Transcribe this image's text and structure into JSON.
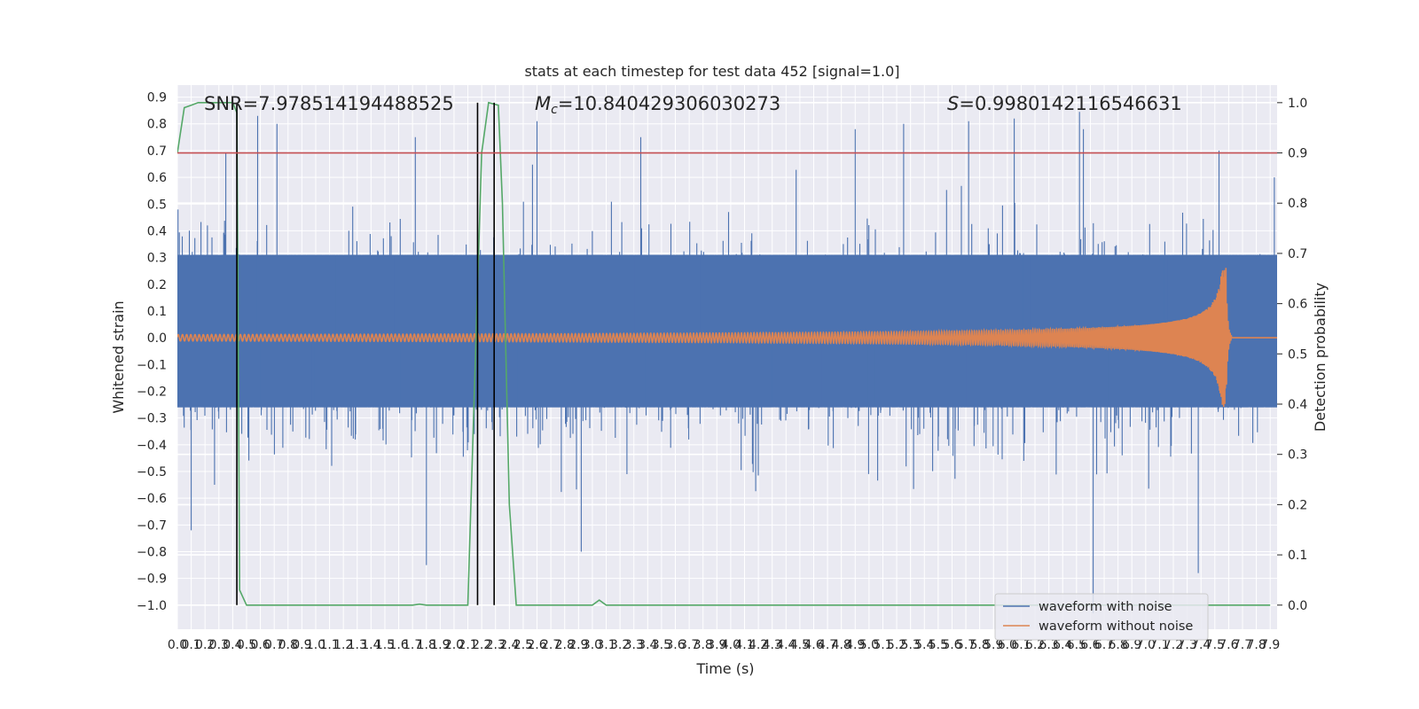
{
  "chart_data": {
    "type": "line",
    "title": "stats at each timestep for test data 452 [signal=1.0]",
    "xlabel": "Time (s)",
    "ylabel_left": "Whitened strain",
    "ylabel_right": "Detection probability",
    "xlim": [
      0.0,
      7.95
    ],
    "ylim_left": [
      -1.09,
      0.945
    ],
    "ylim_right": [
      -0.048,
      1.035
    ],
    "x_ticks": [
      "0.0",
      "0.1",
      "0.2",
      "0.3",
      "0.4",
      "0.5",
      "0.6",
      "0.7",
      "0.8",
      "0.9",
      "1.0",
      "1.1",
      "1.2",
      "1.3",
      "1.4",
      "1.5",
      "1.6",
      "1.7",
      "1.8",
      "1.9",
      "2.0",
      "2.1",
      "2.2",
      "2.3",
      "2.4",
      "2.5",
      "2.6",
      "2.7",
      "2.8",
      "2.9",
      "3.0",
      "3.1",
      "3.2",
      "3.3",
      "3.4",
      "3.5",
      "3.6",
      "3.7",
      "3.8",
      "3.9",
      "4.0",
      "4.1",
      "4.2",
      "4.3",
      "4.4",
      "4.5",
      "4.6",
      "4.7",
      "4.8",
      "4.9",
      "5.0",
      "5.1",
      "5.2",
      "5.3",
      "5.4",
      "5.5",
      "5.6",
      "5.7",
      "5.8",
      "5.9",
      "6.0",
      "6.1",
      "6.2",
      "6.3",
      "6.4",
      "6.5",
      "6.6",
      "6.7",
      "6.8",
      "6.9",
      "7.0",
      "7.1",
      "7.2",
      "7.3",
      "7.4",
      "7.5",
      "7.6",
      "7.7",
      "7.8",
      "7.9"
    ],
    "y_ticks_left": [
      -1.0,
      -0.9,
      -0.8,
      -0.7,
      -0.6,
      -0.5,
      -0.4,
      -0.3,
      -0.2,
      -0.1,
      0.0,
      0.1,
      0.2,
      0.3,
      0.4,
      0.5,
      0.6,
      0.7,
      0.8,
      0.9
    ],
    "y_tick_labels_left": [
      "−1.0",
      "−0.9",
      "−0.8",
      "−0.7",
      "−0.6",
      "−0.5",
      "−0.4",
      "−0.3",
      "−0.2",
      "−0.1",
      "0.0",
      "0.1",
      "0.2",
      "0.3",
      "0.4",
      "0.5",
      "0.6",
      "0.7",
      "0.8",
      "0.9"
    ],
    "y_ticks_right": [
      0.0,
      0.1,
      0.2,
      0.3,
      0.4,
      0.5,
      0.6,
      0.7,
      0.8,
      0.9,
      1.0
    ],
    "y_tick_labels_right": [
      "0.0",
      "0.1",
      "0.2",
      "0.3",
      "0.4",
      "0.5",
      "0.6",
      "0.7",
      "0.8",
      "0.9",
      "1.0"
    ],
    "annotations": {
      "snr": "SNR=7.978514194488525",
      "mc_symbol": "M",
      "mc_sub": "c",
      "mc_value": "=10.840429306030273",
      "s_symbol": "S",
      "s_value": "=0.9980142116546631"
    },
    "threshold_line": {
      "axis": "right",
      "y": 0.9,
      "color": "#c44e52"
    },
    "vertical_lines": [
      0.43,
      2.17,
      2.29
    ],
    "series": [
      {
        "name": "waveform with noise",
        "axis": "left",
        "color": "#4c72b0",
        "kind": "noise",
        "typical_range": [
          -0.45,
          0.5
        ],
        "extreme_range": [
          -1.05,
          0.85
        ]
      },
      {
        "name": "waveform without noise",
        "axis": "left",
        "color": "#dd8452",
        "kind": "chirp",
        "merger_time": 7.58,
        "peak_amplitude": 0.26,
        "start_amplitude": 0.012
      },
      {
        "name": "detection probability",
        "axis": "right",
        "color": "#55a868",
        "x": [
          0.0,
          0.05,
          0.1,
          0.15,
          0.2,
          0.3,
          0.35,
          0.4,
          0.43,
          0.45,
          0.5,
          1.0,
          1.5,
          1.7,
          1.75,
          1.8,
          2.1,
          2.2,
          2.25,
          2.32,
          2.35,
          2.4,
          2.45,
          2.5,
          2.6,
          3.0,
          3.05,
          3.1,
          3.15,
          3.3,
          4.0,
          5.0,
          6.0,
          7.0,
          7.5,
          7.8,
          7.9
        ],
        "values": [
          0.9,
          0.99,
          0.995,
          1.0,
          1.0,
          1.0,
          1.0,
          1.0,
          0.98,
          0.03,
          0.0,
          0.0,
          0.0,
          0.0,
          0.002,
          0.0,
          0.0,
          0.9,
          1.0,
          0.995,
          0.8,
          0.2,
          0.0,
          0.0,
          0.0,
          0.0,
          0.01,
          0.0,
          0.0,
          0.0,
          0.0,
          0.0,
          0.0,
          0.0,
          0.0,
          0.0,
          0.0
        ]
      }
    ],
    "legend": {
      "location": "lower right",
      "entries": [
        {
          "label": "waveform with noise",
          "color": "#4c72b0"
        },
        {
          "label": "waveform without noise",
          "color": "#dd8452"
        }
      ]
    }
  }
}
